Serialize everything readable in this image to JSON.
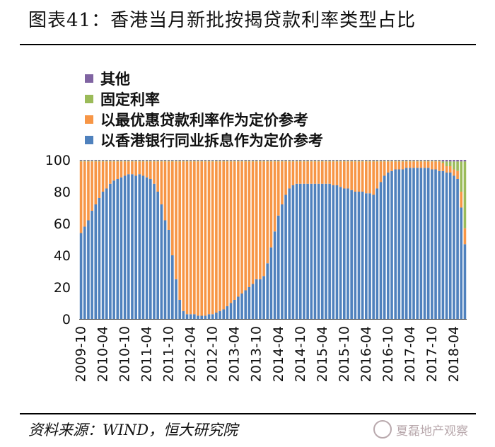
{
  "header": {
    "title": "图表41：香港当月新批按揭贷款利率类型占比"
  },
  "footer": {
    "source": "资料来源：WIND，恒大研究院",
    "watermark": "夏磊地产观察"
  },
  "colors": {
    "hibor": "#4f81bd",
    "prime": "#f79646",
    "fixed": "#9bbb59",
    "other": "#8064a2",
    "grid_background": "#ffffff"
  },
  "chart_data": {
    "type": "bar",
    "stacked": true,
    "title": "香港当月新批按揭贷款利率类型占比",
    "xlabel": "",
    "ylabel": "",
    "ylim": [
      0,
      100
    ],
    "yticks": [
      0,
      20,
      40,
      60,
      80,
      100
    ],
    "legend_position": "top-left",
    "xtick_labels": [
      "2009-10",
      "2010-04",
      "2010-10",
      "2011-04",
      "2011-10",
      "2012-04",
      "2012-10",
      "2013-04",
      "2013-10",
      "2014-04",
      "2014-10",
      "2015-04",
      "2015-10",
      "2016-04",
      "2016-10",
      "2017-04",
      "2017-10",
      "2018-04"
    ],
    "categories": [
      "2009-10",
      "2009-11",
      "2009-12",
      "2010-01",
      "2010-02",
      "2010-03",
      "2010-04",
      "2010-05",
      "2010-06",
      "2010-07",
      "2010-08",
      "2010-09",
      "2010-10",
      "2010-11",
      "2010-12",
      "2011-01",
      "2011-02",
      "2011-03",
      "2011-04",
      "2011-05",
      "2011-06",
      "2011-07",
      "2011-08",
      "2011-09",
      "2011-10",
      "2011-11",
      "2011-12",
      "2012-01",
      "2012-02",
      "2012-03",
      "2012-04",
      "2012-05",
      "2012-06",
      "2012-07",
      "2012-08",
      "2012-09",
      "2012-10",
      "2012-11",
      "2012-12",
      "2013-01",
      "2013-02",
      "2013-03",
      "2013-04",
      "2013-05",
      "2013-06",
      "2013-07",
      "2013-08",
      "2013-09",
      "2013-10",
      "2013-11",
      "2013-12",
      "2014-01",
      "2014-02",
      "2014-03",
      "2014-04",
      "2014-05",
      "2014-06",
      "2014-07",
      "2014-08",
      "2014-09",
      "2014-10",
      "2014-11",
      "2014-12",
      "2015-01",
      "2015-02",
      "2015-03",
      "2015-04",
      "2015-05",
      "2015-06",
      "2015-07",
      "2015-08",
      "2015-09",
      "2015-10",
      "2015-11",
      "2015-12",
      "2016-01",
      "2016-02",
      "2016-03",
      "2016-04",
      "2016-05",
      "2016-06",
      "2016-07",
      "2016-08",
      "2016-09",
      "2016-10",
      "2016-11",
      "2016-12",
      "2017-01",
      "2017-02",
      "2017-03",
      "2017-04",
      "2017-05",
      "2017-06",
      "2017-07",
      "2017-08",
      "2017-09",
      "2017-10",
      "2017-11",
      "2017-12",
      "2018-01",
      "2018-02",
      "2018-03",
      "2018-04",
      "2018-05",
      "2018-06",
      "2018-07"
    ],
    "series": [
      {
        "name": "以香港银行同业拆息作为定价参考",
        "key": "hibor",
        "values": [
          54,
          58,
          62,
          68,
          72,
          76,
          80,
          82,
          85,
          87,
          88,
          89,
          90,
          91,
          91,
          90,
          91,
          90,
          89,
          88,
          85,
          80,
          72,
          62,
          56,
          40,
          25,
          12,
          5,
          3,
          3,
          3,
          2,
          2,
          2,
          3,
          3,
          4,
          5,
          6,
          8,
          10,
          12,
          14,
          16,
          18,
          20,
          22,
          25,
          25,
          27,
          35,
          45,
          55,
          65,
          72,
          78,
          82,
          84,
          85,
          85,
          85,
          85,
          85,
          85,
          85,
          85,
          85,
          85,
          84,
          84,
          83,
          82,
          82,
          81,
          80,
          80,
          80,
          79,
          79,
          78,
          82,
          86,
          90,
          92,
          93,
          94,
          94,
          94,
          95,
          95,
          95,
          95,
          95,
          95,
          95,
          94,
          94,
          93,
          93,
          92,
          92,
          90,
          88,
          70,
          47
        ]
      },
      {
        "name": "以最优惠贷款利率作为定价参考",
        "key": "prime",
        "values": [
          45,
          41,
          37,
          31,
          27,
          23,
          19,
          17,
          14,
          12,
          11,
          10,
          9,
          8,
          8,
          9,
          8,
          9,
          10,
          11,
          14,
          19,
          27,
          37,
          43,
          59,
          74,
          87,
          94,
          96,
          96,
          96,
          97,
          97,
          97,
          96,
          96,
          95,
          94,
          93,
          91,
          89,
          87,
          85,
          83,
          81,
          79,
          77,
          74,
          74,
          72,
          64,
          54,
          44,
          34,
          27,
          21,
          17,
          15,
          14,
          14,
          14,
          14,
          14,
          14,
          14,
          14,
          14,
          14,
          15,
          15,
          16,
          17,
          17,
          18,
          19,
          19,
          19,
          20,
          20,
          21,
          17,
          13,
          9,
          7,
          6,
          5,
          5,
          5,
          4,
          4,
          4,
          4,
          4,
          4,
          4,
          5,
          5,
          6,
          5,
          4,
          4,
          4,
          5,
          10,
          10
        ]
      },
      {
        "name": "固定利率",
        "key": "fixed",
        "values": [
          0.5,
          0.5,
          0.5,
          0.5,
          0.5,
          0.5,
          0.5,
          0.5,
          0.5,
          0.5,
          0.5,
          0.5,
          0.5,
          0.5,
          0.5,
          0.5,
          0.5,
          0.5,
          0.5,
          0.5,
          0.5,
          0.5,
          0.5,
          0.5,
          0.5,
          0.5,
          0.5,
          0.5,
          0.5,
          0.5,
          0.5,
          0.5,
          0.5,
          0.5,
          0.5,
          0.5,
          0.5,
          0.5,
          0.5,
          0.5,
          0.5,
          0.5,
          0.5,
          0.5,
          0.5,
          0.5,
          0.5,
          0.5,
          0.5,
          0.5,
          0.5,
          0.5,
          0.5,
          0.5,
          0.5,
          0.5,
          0.5,
          0.5,
          0.5,
          0.5,
          0.5,
          0.5,
          0.5,
          0.5,
          0.5,
          0.5,
          0.5,
          0.5,
          0.5,
          0.5,
          0.5,
          0.5,
          0.5,
          0.5,
          0.5,
          0.5,
          0.5,
          0.5,
          0.5,
          0.5,
          0.5,
          0.5,
          0.5,
          0.5,
          0.5,
          0.5,
          0.5,
          0.5,
          0.5,
          0.5,
          0.5,
          0.5,
          0.5,
          0.5,
          0.5,
          0.5,
          0.5,
          0.5,
          0.5,
          1,
          3,
          3,
          5,
          6,
          19,
          42
        ]
      },
      {
        "name": "其他",
        "key": "other",
        "values": [
          0.5,
          0.5,
          0.5,
          0.5,
          0.5,
          0.5,
          0.5,
          0.5,
          0.5,
          0.5,
          0.5,
          0.5,
          0.5,
          0.5,
          0.5,
          0.5,
          0.5,
          0.5,
          0.5,
          0.5,
          0.5,
          0.5,
          0.5,
          0.5,
          0.5,
          0.5,
          0.5,
          0.5,
          0.5,
          0.5,
          0.5,
          0.5,
          0.5,
          0.5,
          0.5,
          0.5,
          0.5,
          0.5,
          0.5,
          0.5,
          0.5,
          0.5,
          0.5,
          0.5,
          0.5,
          0.5,
          0.5,
          0.5,
          0.5,
          0.5,
          0.5,
          0.5,
          0.5,
          0.5,
          0.5,
          0.5,
          0.5,
          0.5,
          0.5,
          0.5,
          0.5,
          0.5,
          0.5,
          0.5,
          0.5,
          0.5,
          0.5,
          0.5,
          0.5,
          0.5,
          0.5,
          0.5,
          0.5,
          0.5,
          0.5,
          0.5,
          0.5,
          0.5,
          0.5,
          0.5,
          0.5,
          0.5,
          0.5,
          0.5,
          0.5,
          0.5,
          0.5,
          0.5,
          0.5,
          0.5,
          0.5,
          0.5,
          0.5,
          0.5,
          0.5,
          0.5,
          0.5,
          0.5,
          0.5,
          1,
          1,
          1,
          1,
          1,
          1,
          1
        ]
      }
    ],
    "legend": [
      {
        "name": "其他",
        "key": "other"
      },
      {
        "name": "固定利率",
        "key": "fixed"
      },
      {
        "name": "以最优惠贷款利率作为定价参考",
        "key": "prime"
      },
      {
        "name": "以香港银行同业拆息作为定价参考",
        "key": "hibor"
      }
    ]
  }
}
